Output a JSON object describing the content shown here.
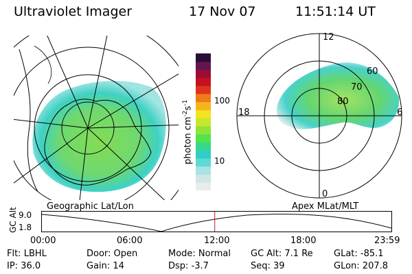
{
  "header": {
    "instrument": "Ultraviolet Imager",
    "date": "17 Nov 07",
    "time": "11:51:14 UT"
  },
  "left_panel": {
    "caption": "Geographic Lat/Lon"
  },
  "right_panel": {
    "caption": "Apex MLat/MLT",
    "lat_labels": [
      "60",
      "70",
      "80"
    ],
    "mlt_labels": [
      "12",
      "18",
      "6",
      "0"
    ]
  },
  "colorbar": {
    "label": "photon cm-2s-1",
    "label_base": "photon cm",
    "label_sup1": "-2",
    "label_mid": "s",
    "label_sup2": "-1",
    "ticks": [
      "100",
      "10"
    ],
    "colors": [
      "#e8ecec",
      "#cfe6e6",
      "#a8e2e2",
      "#5fd9d6",
      "#2fcfc7",
      "#36d88c",
      "#55e24a",
      "#8ee43a",
      "#c8e72c",
      "#f2e41f",
      "#f5b41c",
      "#f07b1b",
      "#e0331c",
      "#c4121f",
      "#9c0c3a",
      "#62154f",
      "#2a0d3a"
    ]
  },
  "altitude_plot": {
    "ylabel": "GC Alt",
    "y_ticks": [
      "9.0",
      "1.8"
    ],
    "x_ticks": [
      "00:00",
      "06:00",
      "12:00",
      "18:00",
      "23:59"
    ],
    "current_time_hours": 11.86,
    "current_marker_color": "#d01010"
  },
  "info": {
    "flt": "Flt: LBHL",
    "ip": "IP: 36.0",
    "door": "Door: Open",
    "gain": "Gain: 14",
    "mode": "Mode: Normal",
    "dsp": "Dsp:    -3.7",
    "gcalt": "GC Alt: 7.1 Re",
    "seq": "Seq: 39",
    "glat": "GLat:   -85.1",
    "glon": "GLon: 207.8"
  }
}
